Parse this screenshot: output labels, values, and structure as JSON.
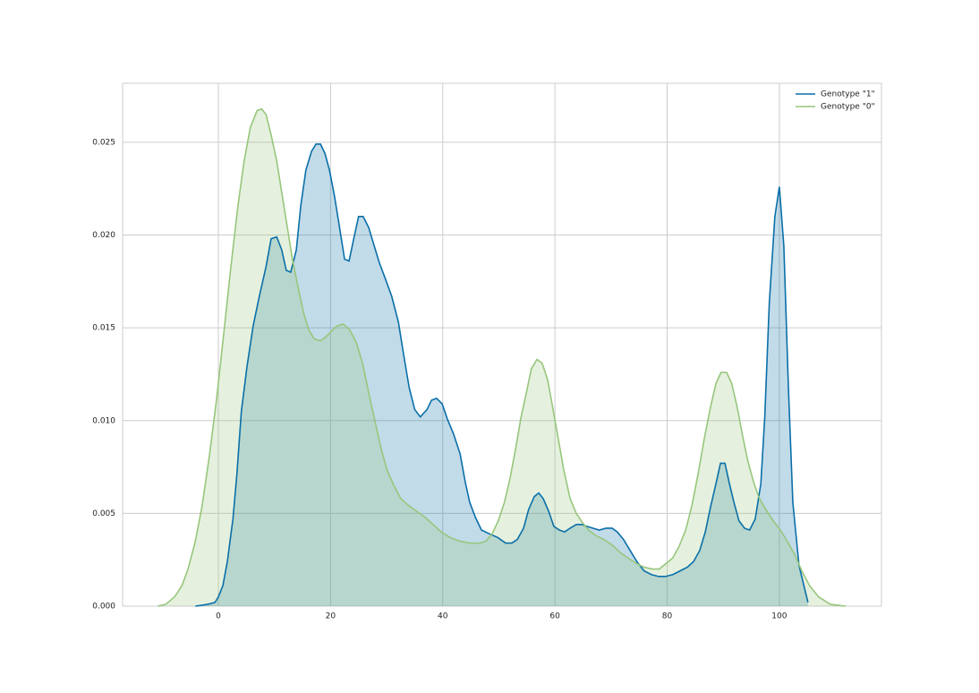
{
  "chart_data": {
    "type": "kde",
    "xlim": [
      -17.07,
      118.2
    ],
    "ylim": [
      0,
      0.02818
    ],
    "xticks": [
      0,
      20,
      40,
      60,
      80,
      100
    ],
    "yticks": [
      {
        "value": 0,
        "label": "0.000"
      },
      {
        "value": 0.005,
        "label": "0.005"
      },
      {
        "value": 0.01,
        "label": "0.010"
      },
      {
        "value": 0.015,
        "label": "0.015"
      },
      {
        "value": 0.02,
        "label": "0.020"
      },
      {
        "value": 0.025,
        "label": "0.025"
      }
    ],
    "grid": true,
    "legend": "upper right",
    "series": [
      {
        "name": "Genotype \"1\"",
        "color": "#0a6fa8",
        "x": [
          -4.1,
          -1.9,
          -0.6,
          0,
          0.8,
          1.6,
          2.6,
          3.3,
          4.1,
          5.1,
          6.2,
          7.3,
          8.5,
          9.4,
          10.4,
          11.3,
          12.1,
          12.9,
          13.9,
          14.7,
          15.6,
          16.6,
          17.4,
          18.2,
          19.0,
          19.8,
          20.7,
          21.5,
          22.5,
          23.3,
          24.2,
          25.0,
          25.8,
          26.8,
          27.8,
          28.7,
          29.7,
          30.9,
          32.1,
          33.0,
          34.0,
          35.0,
          36.0,
          37.2,
          38.0,
          38.9,
          39.9,
          40.8,
          41.9,
          43.1,
          44.0,
          44.8,
          45.8,
          46.9,
          48.3,
          49.8,
          51.2,
          52.3,
          53.3,
          54.4,
          55.3,
          56.3,
          57.1,
          57.9,
          58.9,
          59.8,
          60.8,
          61.7,
          62.7,
          63.8,
          64.8,
          65.7,
          66.8,
          67.9,
          69.1,
          70.2,
          71.1,
          72.2,
          73.4,
          74.6,
          75.9,
          77.2,
          78.5,
          79.7,
          81.0,
          82.3,
          83.6,
          84.7,
          85.8,
          86.8,
          87.7,
          88.7,
          89.5,
          90.3,
          91.1,
          91.9,
          92.8,
          93.8,
          94.7,
          95.7,
          96.7,
          97.4,
          98.2,
          99.2,
          100.0,
          100.8,
          101.6,
          102.4,
          103.5,
          105.1
        ],
        "values": [
          0,
          0.0001,
          0.0002,
          0.0005,
          0.0011,
          0.0024,
          0.0047,
          0.0071,
          0.0105,
          0.0129,
          0.0151,
          0.0167,
          0.0183,
          0.0198,
          0.0199,
          0.0192,
          0.0181,
          0.018,
          0.0192,
          0.0216,
          0.0235,
          0.0245,
          0.0249,
          0.0249,
          0.0244,
          0.0235,
          0.0221,
          0.0206,
          0.0187,
          0.0186,
          0.0199,
          0.021,
          0.021,
          0.0204,
          0.0194,
          0.0185,
          0.0177,
          0.0167,
          0.0153,
          0.0136,
          0.0118,
          0.0106,
          0.0102,
          0.0106,
          0.0111,
          0.0112,
          0.0109,
          0.0101,
          0.0093,
          0.0082,
          0.0067,
          0.0056,
          0.0048,
          0.0041,
          0.0039,
          0.0037,
          0.0034,
          0.0034,
          0.0036,
          0.0042,
          0.0052,
          0.0059,
          0.0061,
          0.0058,
          0.0051,
          0.0043,
          0.0041,
          0.004,
          0.0042,
          0.0044,
          0.0044,
          0.0043,
          0.0042,
          0.0041,
          0.0042,
          0.0042,
          0.004,
          0.0036,
          0.003,
          0.0024,
          0.0019,
          0.0017,
          0.0016,
          0.0016,
          0.0017,
          0.0019,
          0.0021,
          0.0024,
          0.003,
          0.004,
          0.0053,
          0.0066,
          0.0077,
          0.0077,
          0.0066,
          0.0056,
          0.0046,
          0.0042,
          0.0041,
          0.0047,
          0.0066,
          0.0102,
          0.0163,
          0.021,
          0.0226,
          0.0194,
          0.0119,
          0.0056,
          0.0022,
          0.0002
        ]
      },
      {
        "name": "Genotype \"0\"",
        "color": "#97c67c",
        "x": [
          -10.8,
          -9.4,
          -7.8,
          -6.5,
          -5.4,
          -4.1,
          -2.9,
          -1.6,
          -0.3,
          1.0,
          2.2,
          3.5,
          4.6,
          5.7,
          6.9,
          7.7,
          8.5,
          9.4,
          10.4,
          11.3,
          12.3,
          13.2,
          14.2,
          15.2,
          16.1,
          17.1,
          18.2,
          19.1,
          20.1,
          21.1,
          22.3,
          23.4,
          24.6,
          25.7,
          26.8,
          27.9,
          29.0,
          30.1,
          31.3,
          32.5,
          34.0,
          35.4,
          36.8,
          38.3,
          39.7,
          41.3,
          43.1,
          44.8,
          46.6,
          47.7,
          48.8,
          49.9,
          51.0,
          52.0,
          53.0,
          53.9,
          54.9,
          55.8,
          56.8,
          57.7,
          58.7,
          59.6,
          60.6,
          61.6,
          62.7,
          63.8,
          64.9,
          66.0,
          67.3,
          68.7,
          70.2,
          71.6,
          73.0,
          74.5,
          75.9,
          77.4,
          78.6,
          79.8,
          81.0,
          82.1,
          83.3,
          84.4,
          85.5,
          86.6,
          87.7,
          88.7,
          89.6,
          90.6,
          91.5,
          92.5,
          93.5,
          94.4,
          95.4,
          96.3,
          97.6,
          98.9,
          100.2,
          101.4,
          102.7,
          104.0,
          105.4,
          107.0,
          109.1,
          111.8
        ],
        "values": [
          0,
          0.0001,
          0.0005,
          0.0011,
          0.002,
          0.0035,
          0.0054,
          0.0081,
          0.0112,
          0.0148,
          0.0182,
          0.0216,
          0.024,
          0.0258,
          0.0267,
          0.0268,
          0.0265,
          0.0254,
          0.024,
          0.0223,
          0.0204,
          0.0187,
          0.0172,
          0.0158,
          0.0149,
          0.0144,
          0.0143,
          0.0145,
          0.0148,
          0.0151,
          0.0152,
          0.0149,
          0.0142,
          0.0131,
          0.0115,
          0.01,
          0.0085,
          0.0073,
          0.0065,
          0.0058,
          0.0054,
          0.0051,
          0.0048,
          0.0044,
          0.004,
          0.0037,
          0.0035,
          0.0034,
          0.0034,
          0.0035,
          0.0039,
          0.0046,
          0.0056,
          0.0069,
          0.0085,
          0.0101,
          0.0115,
          0.0128,
          0.0133,
          0.0131,
          0.0122,
          0.0107,
          0.009,
          0.0073,
          0.0058,
          0.005,
          0.0045,
          0.0041,
          0.0038,
          0.0036,
          0.0033,
          0.0029,
          0.0026,
          0.0023,
          0.0021,
          0.002,
          0.002,
          0.0023,
          0.0026,
          0.0032,
          0.0041,
          0.0054,
          0.0071,
          0.009,
          0.0107,
          0.012,
          0.0126,
          0.0126,
          0.012,
          0.0107,
          0.0091,
          0.0078,
          0.0067,
          0.0059,
          0.0052,
          0.0046,
          0.0041,
          0.0035,
          0.0028,
          0.0019,
          0.0011,
          0.0005,
          0.0001,
          0
        ]
      }
    ]
  }
}
